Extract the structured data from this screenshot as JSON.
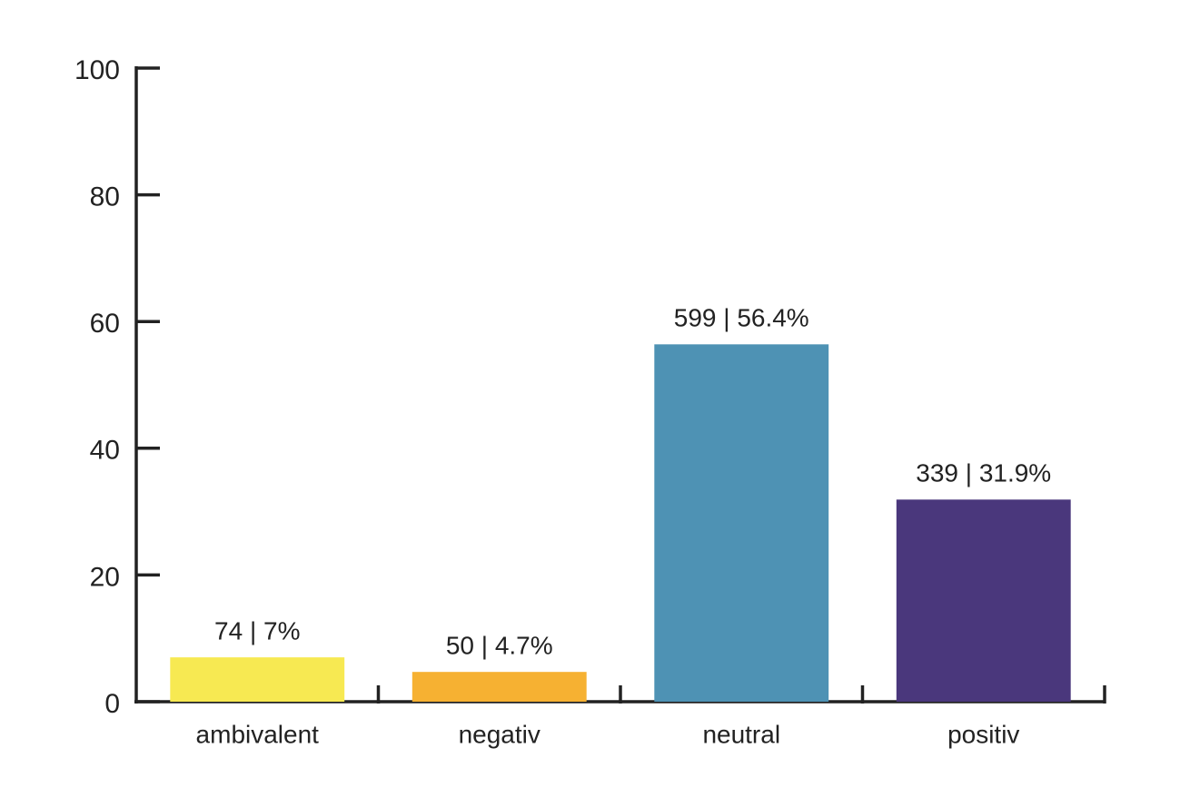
{
  "chart_data": {
    "type": "bar",
    "categories": [
      "ambivalent",
      "negativ",
      "neutral",
      "positiv"
    ],
    "values": [
      7,
      4.7,
      56.4,
      31.9
    ],
    "value_labels": [
      "74 | 7%",
      "50 | 4.7%",
      "599 | 56.4%",
      "339 | 31.9%"
    ],
    "colors": [
      "#f7e952",
      "#f6b132",
      "#4e92b4",
      "#4a377c"
    ],
    "ylim": [
      0,
      100
    ],
    "yticks": [
      0,
      20,
      40,
      60,
      80,
      100
    ],
    "grid": false
  }
}
